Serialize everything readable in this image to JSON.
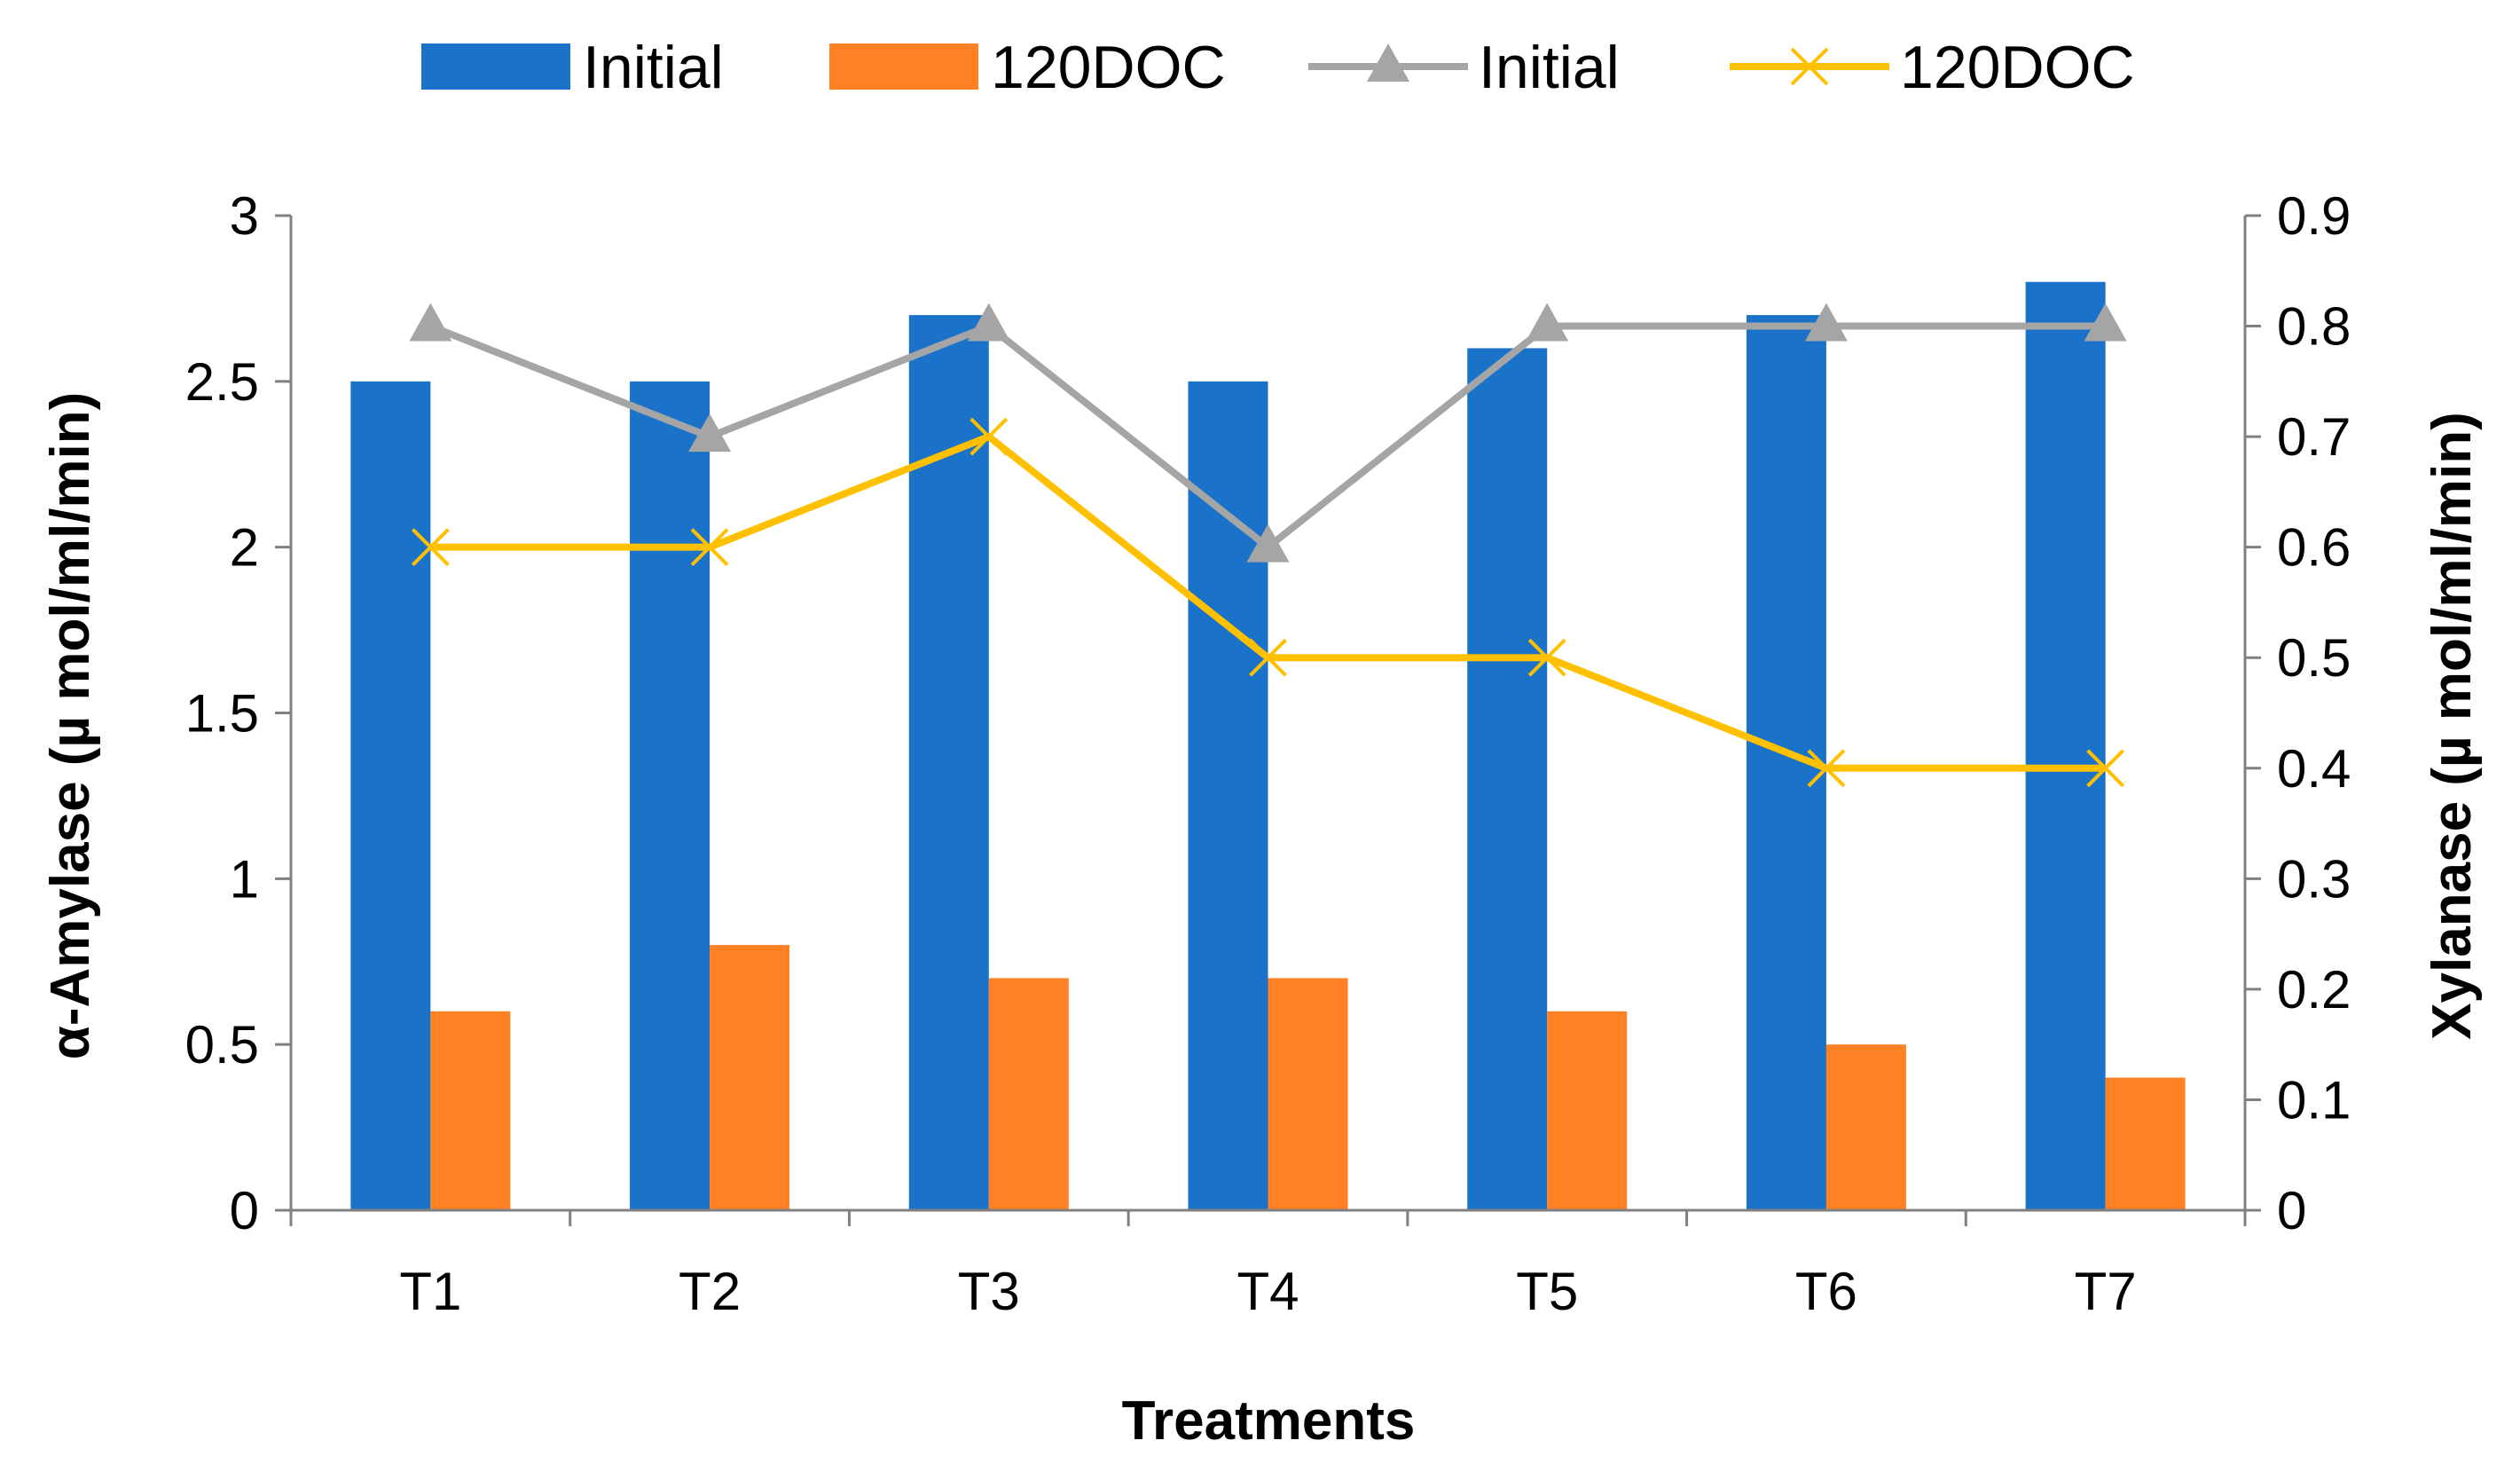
{
  "chart_data": {
    "type": "bar+line",
    "categories": [
      "T1",
      "T2",
      "T3",
      "T4",
      "T5",
      "T6",
      "T7"
    ],
    "xlabel": "Treatments",
    "ylabel": "α-Amylase (µ mol/ml/min)",
    "y2label": "Xylanase (µ mol/ml/min)",
    "ylim": [
      0,
      3
    ],
    "yticks": [
      "0",
      "0.5",
      "1",
      "1.5",
      "2",
      "2.5",
      "3"
    ],
    "y2lim": [
      0,
      0.9
    ],
    "y2ticks": [
      "0",
      "0.1",
      "0.2",
      "0.3",
      "0.4",
      "0.5",
      "0.6",
      "0.7",
      "0.8",
      "0.9"
    ],
    "legend_position": "top",
    "bar_series": [
      {
        "name": "Initial",
        "color": "#1A73C8",
        "values": [
          2.5,
          2.5,
          2.7,
          2.5,
          2.6,
          2.7,
          2.8
        ]
      },
      {
        "name": "120DOC",
        "color": "#FF8124",
        "values": [
          0.6,
          0.8,
          0.7,
          0.7,
          0.6,
          0.5,
          0.4
        ]
      }
    ],
    "line_series": [
      {
        "name": "Initial",
        "color": "#A5A5A5",
        "marker": "triangle",
        "axis": "right",
        "values": [
          0.8,
          0.7,
          0.8,
          0.6,
          0.8,
          0.8,
          0.8
        ]
      },
      {
        "name": "120DOC",
        "color": "#FFC000",
        "marker": "x",
        "axis": "right",
        "values": [
          0.6,
          0.6,
          0.7,
          0.5,
          0.5,
          0.4,
          0.4
        ]
      }
    ]
  }
}
